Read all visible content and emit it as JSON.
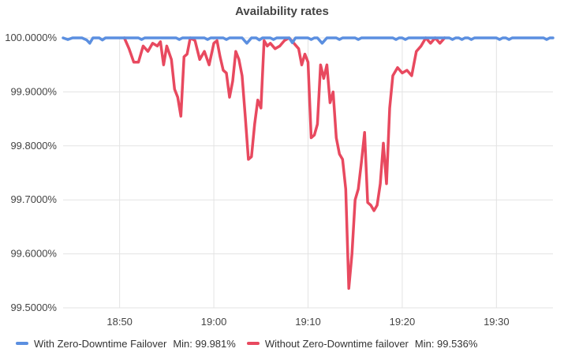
{
  "chart_data": {
    "type": "line",
    "title": "Availability rates",
    "xlabel": "",
    "ylabel": "",
    "x_range": [
      "18:44",
      "19:36"
    ],
    "ylim": [
      99.5,
      100.0
    ],
    "y_ticks": [
      "100.0000%",
      "99.9000%",
      "99.8000%",
      "99.7000%",
      "99.6000%",
      "99.5000%"
    ],
    "x_ticks": [
      "18:50",
      "19:00",
      "19:10",
      "19:20",
      "19:30"
    ],
    "grid": true,
    "legend_position": "bottom-left",
    "series": [
      {
        "name": "With Zero-Downtime Failover",
        "color": "#5B8FE0",
        "min_label": "Min: 99.981%",
        "points": [
          [
            "18:44",
            100.0
          ],
          [
            "18:44:30",
            99.997
          ],
          [
            "18:45",
            100.0
          ],
          [
            "18:46",
            100.0
          ],
          [
            "18:46:30",
            99.996
          ],
          [
            "18:46:50",
            99.99
          ],
          [
            "18:47:10",
            100.0
          ],
          [
            "18:47:50",
            100.0
          ],
          [
            "18:48:10",
            99.996
          ],
          [
            "18:48:30",
            100.0
          ],
          [
            "18:52",
            100.0
          ],
          [
            "18:52:20",
            99.997
          ],
          [
            "18:52:40",
            100.0
          ],
          [
            "18:56",
            100.0
          ],
          [
            "18:56:20",
            99.997
          ],
          [
            "18:56:40",
            100.0
          ],
          [
            "18:59",
            100.0
          ],
          [
            "18:59:20",
            99.997
          ],
          [
            "18:59:40",
            100.0
          ],
          [
            "19:01",
            100.0
          ],
          [
            "19:01:20",
            99.997
          ],
          [
            "19:01:40",
            100.0
          ],
          [
            "19:03",
            100.0
          ],
          [
            "19:03:30",
            99.99
          ],
          [
            "19:04",
            100.0
          ],
          [
            "19:04:30",
            100.0
          ],
          [
            "19:04:50",
            99.996
          ],
          [
            "19:05:10",
            100.0
          ],
          [
            "19:06",
            100.0
          ],
          [
            "19:06:20",
            99.997
          ],
          [
            "19:06:40",
            100.0
          ],
          [
            "19:08",
            100.0
          ],
          [
            "19:08:20",
            99.991
          ],
          [
            "19:08:40",
            100.0
          ],
          [
            "19:10",
            100.0
          ],
          [
            "19:10:20",
            99.997
          ],
          [
            "19:10:40",
            100.0
          ],
          [
            "19:11",
            100.0
          ],
          [
            "19:11:30",
            99.99
          ],
          [
            "19:12",
            100.0
          ],
          [
            "19:13",
            100.0
          ],
          [
            "19:13:20",
            99.997
          ],
          [
            "19:13:40",
            100.0
          ],
          [
            "19:15",
            100.0
          ],
          [
            "19:15:20",
            99.997
          ],
          [
            "19:15:40",
            100.0
          ],
          [
            "19:19",
            100.0
          ],
          [
            "19:19:20",
            99.997
          ],
          [
            "19:19:40",
            100.0
          ],
          [
            "19:20",
            100.0
          ],
          [
            "19:20:20",
            99.997
          ],
          [
            "19:20:40",
            100.0
          ],
          [
            "19:25",
            100.0
          ],
          [
            "19:25:20",
            99.997
          ],
          [
            "19:25:40",
            100.0
          ],
          [
            "19:26",
            100.0
          ],
          [
            "19:26:20",
            99.997
          ],
          [
            "19:26:40",
            100.0
          ],
          [
            "19:27",
            100.0
          ],
          [
            "19:27:20",
            99.997
          ],
          [
            "19:27:40",
            100.0
          ],
          [
            "19:30",
            100.0
          ],
          [
            "19:30:20",
            99.997
          ],
          [
            "19:30:40",
            100.0
          ],
          [
            "19:31",
            100.0
          ],
          [
            "19:31:20",
            99.997
          ],
          [
            "19:31:40",
            100.0
          ],
          [
            "19:35",
            100.0
          ],
          [
            "19:35:20",
            99.997
          ],
          [
            "19:35:40",
            100.0
          ],
          [
            "19:36",
            100.0
          ]
        ]
      },
      {
        "name": "Without Zero-Downtime failover",
        "color": "#E8495F",
        "min_label": "Min: 99.536%",
        "points": [
          [
            "18:50:30",
            100.0
          ],
          [
            "18:51",
            99.98
          ],
          [
            "18:51:30",
            99.955
          ],
          [
            "18:52",
            99.955
          ],
          [
            "18:52:30",
            99.985
          ],
          [
            "18:53",
            99.975
          ],
          [
            "18:53:30",
            99.99
          ],
          [
            "18:54",
            99.985
          ],
          [
            "18:54:20",
            99.993
          ],
          [
            "18:54:40",
            99.95
          ],
          [
            "18:55",
            99.985
          ],
          [
            "18:55:30",
            99.96
          ],
          [
            "18:55:50",
            99.905
          ],
          [
            "18:56:10",
            99.89
          ],
          [
            "18:56:30",
            99.855
          ],
          [
            "18:56:50",
            99.965
          ],
          [
            "18:57:10",
            99.97
          ],
          [
            "18:57:30",
            100.0
          ],
          [
            "18:58",
            99.995
          ],
          [
            "18:58:30",
            99.96
          ],
          [
            "18:59",
            99.975
          ],
          [
            "18:59:30",
            99.95
          ],
          [
            "19:00",
            99.99
          ],
          [
            "19:00:20",
            99.995
          ],
          [
            "19:00:40",
            99.965
          ],
          [
            "19:01",
            99.94
          ],
          [
            "19:01:20",
            99.935
          ],
          [
            "19:01:40",
            99.89
          ],
          [
            "19:02",
            99.92
          ],
          [
            "19:02:20",
            99.975
          ],
          [
            "19:02:40",
            99.96
          ],
          [
            "19:03",
            99.93
          ],
          [
            "19:03:20",
            99.855
          ],
          [
            "19:03:40",
            99.775
          ],
          [
            "19:04",
            99.78
          ],
          [
            "19:04:20",
            99.84
          ],
          [
            "19:04:40",
            99.885
          ],
          [
            "19:05",
            99.87
          ],
          [
            "19:05:20",
            99.995
          ],
          [
            "19:05:40",
            99.985
          ],
          [
            "19:06",
            99.99
          ],
          [
            "19:06:30",
            99.98
          ],
          [
            "19:07",
            99.985
          ],
          [
            "19:07:30",
            99.995
          ],
          [
            "19:08",
            100.0
          ],
          [
            "19:08:30",
            99.99
          ],
          [
            "19:09",
            99.98
          ],
          [
            "19:09:20",
            99.95
          ],
          [
            "19:09:40",
            99.97
          ],
          [
            "19:10",
            99.955
          ],
          [
            "19:10:20",
            99.815
          ],
          [
            "19:10:40",
            99.82
          ],
          [
            "19:11",
            99.84
          ],
          [
            "19:11:20",
            99.95
          ],
          [
            "19:11:40",
            99.925
          ],
          [
            "19:12",
            99.95
          ],
          [
            "19:12:20",
            99.88
          ],
          [
            "19:12:40",
            99.9
          ],
          [
            "19:13",
            99.815
          ],
          [
            "19:13:20",
            99.785
          ],
          [
            "19:13:40",
            99.775
          ],
          [
            "19:14",
            99.72
          ],
          [
            "19:14:20",
            99.536
          ],
          [
            "19:14:40",
            99.6
          ],
          [
            "19:15",
            99.7
          ],
          [
            "19:15:20",
            99.72
          ],
          [
            "19:15:40",
            99.77
          ],
          [
            "19:16",
            99.825
          ],
          [
            "19:16:20",
            99.695
          ],
          [
            "19:16:40",
            99.69
          ],
          [
            "19:17",
            99.68
          ],
          [
            "19:17:20",
            99.69
          ],
          [
            "19:17:40",
            99.73
          ],
          [
            "19:18",
            99.805
          ],
          [
            "19:18:20",
            99.73
          ],
          [
            "19:18:40",
            99.87
          ],
          [
            "19:19",
            99.93
          ],
          [
            "19:19:30",
            99.945
          ],
          [
            "19:20",
            99.935
          ],
          [
            "19:20:30",
            99.94
          ],
          [
            "19:21",
            99.93
          ],
          [
            "19:21:30",
            99.975
          ],
          [
            "19:22",
            99.985
          ],
          [
            "19:22:30",
            100.0
          ],
          [
            "19:23",
            99.99
          ],
          [
            "19:23:30",
            100.0
          ],
          [
            "19:24",
            99.99
          ],
          [
            "19:24:30",
            100.0
          ]
        ]
      }
    ]
  }
}
